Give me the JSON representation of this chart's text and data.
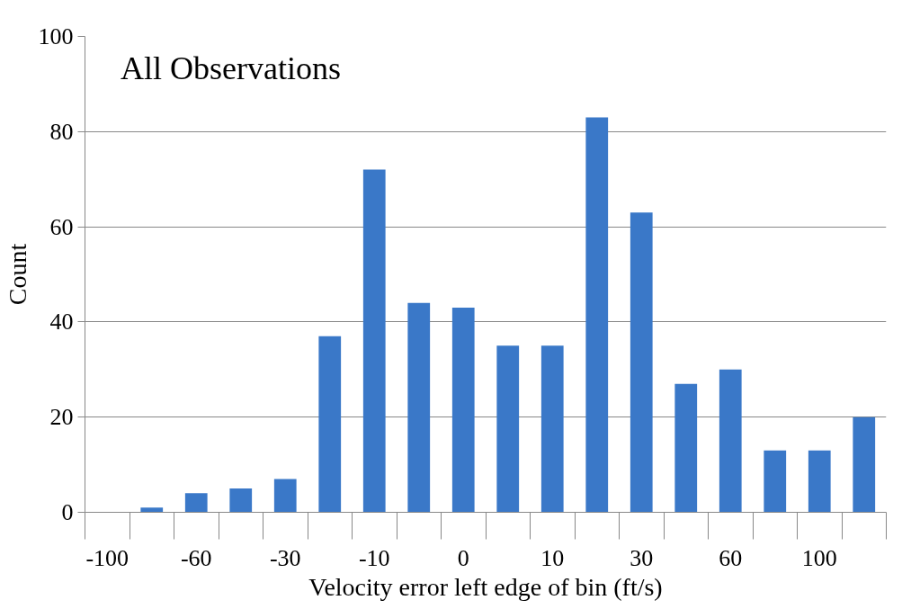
{
  "chart_data": {
    "type": "bar",
    "title": "All Observations",
    "xlabel": "Velocity error left edge of bin (ft/s)",
    "ylabel": "Count",
    "categories": [
      "-100",
      null,
      "-60",
      null,
      "-30",
      null,
      "-10",
      null,
      "0",
      null,
      "10",
      null,
      "30",
      null,
      "60",
      null,
      "100",
      null
    ],
    "values": [
      0,
      1,
      4,
      5,
      7,
      37,
      72,
      44,
      43,
      35,
      35,
      83,
      63,
      27,
      30,
      13,
      13,
      20
    ],
    "color": "#3a78c8",
    "ylim": [
      0,
      100
    ],
    "yticks": [
      0,
      20,
      40,
      60,
      80,
      100
    ],
    "grid": "y"
  }
}
